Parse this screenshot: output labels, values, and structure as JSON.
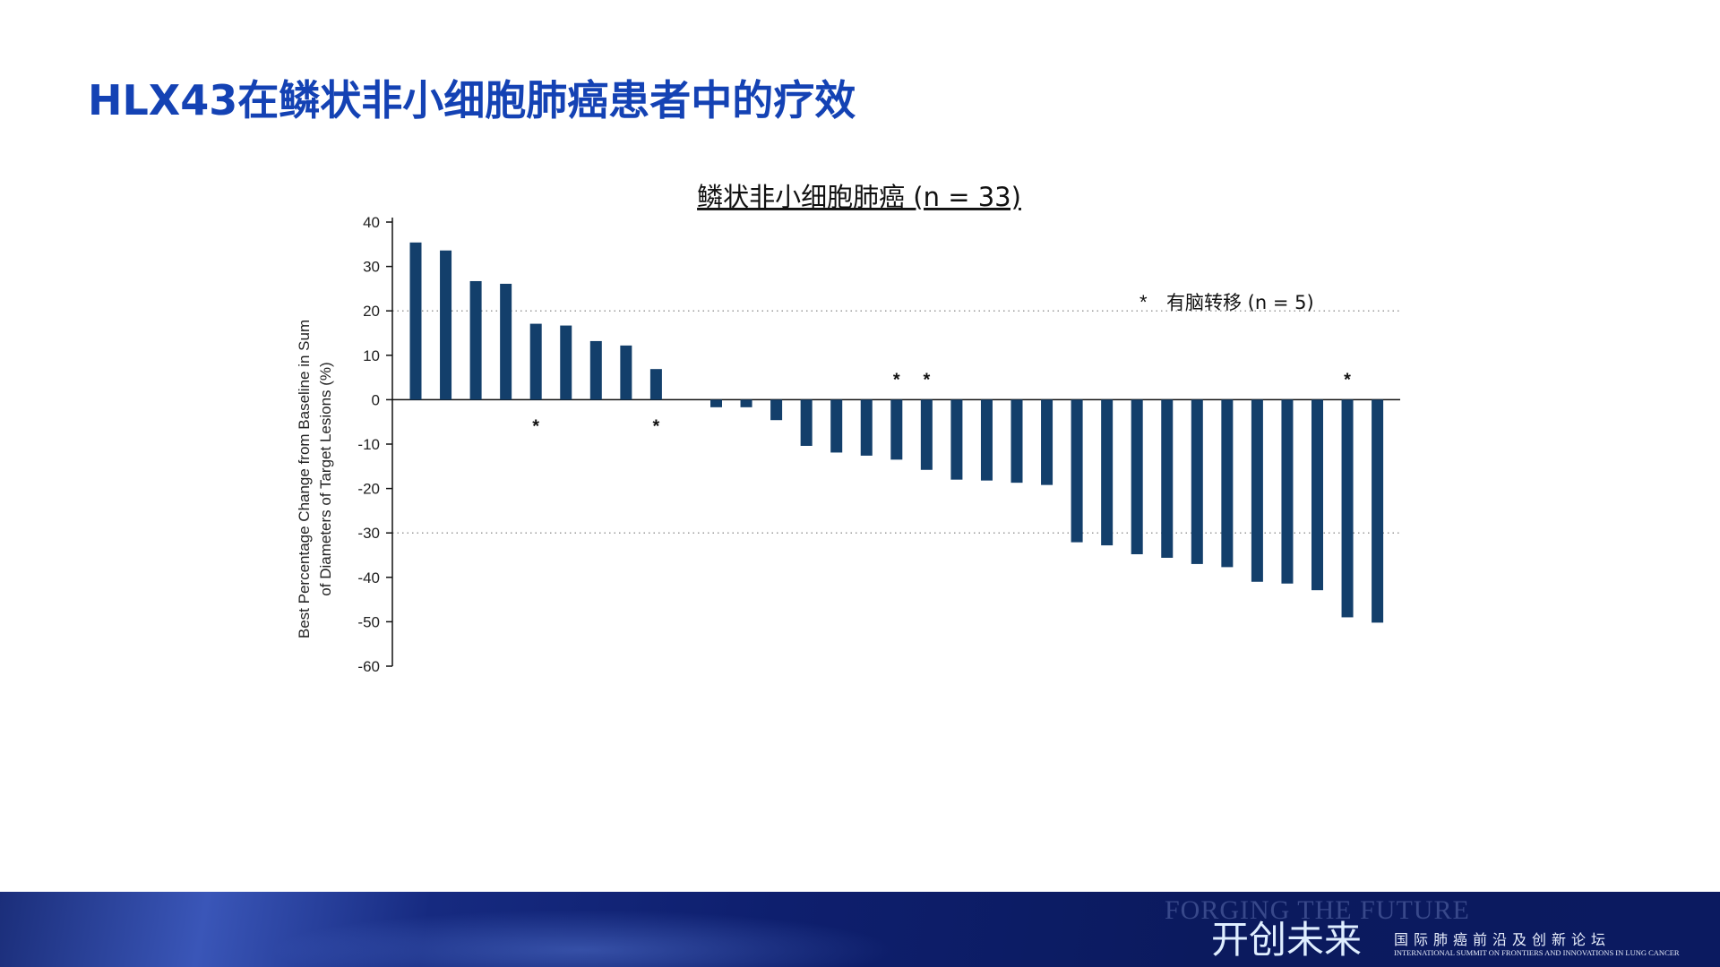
{
  "slide": {
    "heading": "HLX43在鳞状非小细胞肺癌患者中的疗效"
  },
  "chart_data": {
    "type": "bar",
    "title": "鳞状非小细胞肺癌 (n = 33)",
    "ylabel_line1": "Best Percentage Change from Baseline in Sum",
    "ylabel_line2": "of Diameters of Target Lesions (%)",
    "xlabel": "",
    "ylim": [
      -60,
      40
    ],
    "yticks": [
      40,
      30,
      20,
      10,
      0,
      -10,
      -20,
      -30,
      -40,
      -50,
      -60
    ],
    "reference_lines": [
      20,
      -30
    ],
    "values": [
      35.4,
      33.6,
      26.7,
      26.1,
      17.1,
      16.7,
      13.2,
      12.2,
      6.9,
      0,
      -1.7,
      -1.7,
      -4.6,
      -10.4,
      -11.9,
      -12.6,
      -13.5,
      -15.8,
      -18.0,
      -18.2,
      -18.7,
      -19.2,
      -32.1,
      -32.8,
      -34.8,
      -35.6,
      -37.0,
      -37.7,
      -41.0,
      -41.4,
      -42.9,
      -49.0,
      -50.2
    ],
    "brain_metastasis_marked": [
      5,
      9,
      17,
      18,
      32
    ],
    "marker_symbol": "*",
    "legend": {
      "symbol": "*",
      "label": "有脑转移 (n = 5)",
      "placement": "top-right"
    },
    "bar_color": "#133f6b",
    "grid": false
  },
  "footer": {
    "cn_title": "开创未来",
    "en_watermark": "FORGING THE FUTURE",
    "sub_cn": "国际肺癌前沿及创新论坛",
    "sub_en": "INTERNATIONAL SUMMIT ON FRONTIERS AND INNOVATIONS IN LUNG CANCER"
  },
  "colors": {
    "heading": "#1442b4",
    "bar": "#133f6b"
  }
}
